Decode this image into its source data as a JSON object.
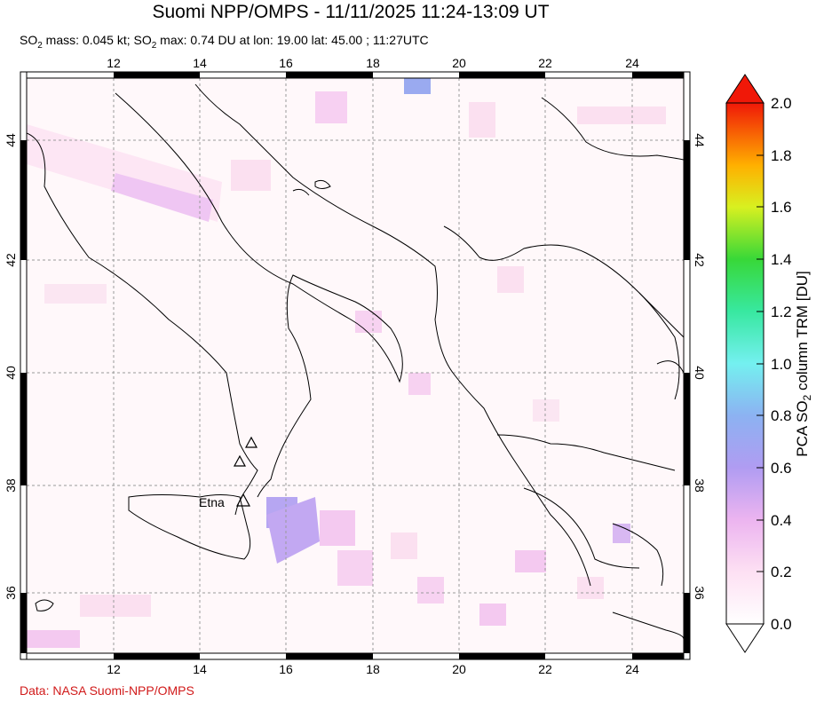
{
  "title": "Suomi NPP/OMPS - 11/11/2025 11:24-13:09 UT",
  "subtitle": {
    "prefix": "SO",
    "sub1": "2",
    "mass_text": " mass: 0.045 kt; SO",
    "sub2": "2",
    "rest": " max: 0.74 DU at lon: 19.00 lat: 45.00 ; 11:27UTC"
  },
  "credit": "Data: NASA Suomi-NPP/OMPS",
  "map": {
    "lon_range": [
      10,
      25
    ],
    "lat_range": [
      35,
      45
    ],
    "lon_ticks": [
      "12",
      "14",
      "16",
      "18",
      "20",
      "22",
      "24"
    ],
    "lat_ticks": [
      "36",
      "38",
      "40",
      "42",
      "44"
    ],
    "volcano_label": "Etna"
  },
  "colorbar": {
    "label_prefix": "PCA SO",
    "label_sub": "2",
    "label_suffix": " column TRM [DU]",
    "ticks": [
      "0.0",
      "0.2",
      "0.4",
      "0.6",
      "0.8",
      "1.0",
      "1.2",
      "1.4",
      "1.6",
      "1.8",
      "2.0"
    ],
    "range": [
      0,
      2
    ]
  }
}
